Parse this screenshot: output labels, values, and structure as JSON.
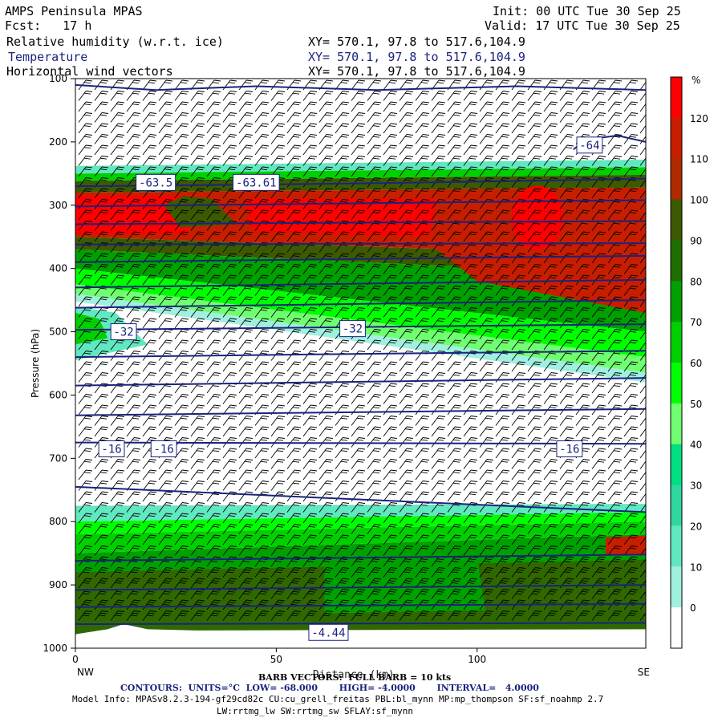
{
  "header": {
    "model": "AMPS Peninsula MPAS",
    "fcst": "Fcst:   17 h",
    "init": "Init: 00 UTC Tue 30 Sep 25",
    "valid": "Valid: 17 UTC Tue 30 Sep 25",
    "fields": [
      {
        "name": "Relative humidity (w.r.t. ice)",
        "xy": "XY= 570.1, 97.8 to 517.6,104.9"
      },
      {
        "name": "Temperature",
        "xy": "XY= 570.1, 97.8 to 517.6,104.9"
      },
      {
        "name": "Horizontal wind vectors",
        "xy": "XY= 570.1, 97.8 to 517.6,104.9"
      }
    ]
  },
  "footer": {
    "barb_line": "BARB VECTORS:  FULL BARB = 10 kts",
    "overlap_label": "Distance (km)",
    "contours_label": "CONTOURS:  UNITS=°C  LOW= -68.000       HIGH= -4.0000       INTERVAL=   4.0000",
    "model_info": "Model Info: MPASv8.2.3-194-gf29cd82c CU:cu_grell_freitas PBL:bl_mynn MP:mp_thompson SF:sf_noahmp 2.7",
    "model_info2": "LW:rrtmg_lw SW:rrtmg_sw SFLAY:sf_mynn"
  },
  "chart_data": {
    "type": "heatmap",
    "description_fields": [
      "Relative humidity (w.r.t. ice)",
      "Temperature",
      "Horizontal wind vectors"
    ],
    "ylabel": "Pressure (hPa)",
    "xlabel": "Distance (km)",
    "y_axis": {
      "range": [
        100,
        1000
      ],
      "ticks": [
        "100",
        "200",
        "300",
        "400",
        "500",
        "600",
        "700",
        "800",
        "900",
        "1000"
      ]
    },
    "x_axis": {
      "range": [
        0,
        142
      ],
      "ticks": [
        "0",
        "50",
        "100"
      ],
      "end_labels": [
        "NW",
        "SE"
      ]
    },
    "colorbar": {
      "unit": "%",
      "labels": [
        "120",
        "110",
        "100",
        "90",
        "80",
        "70",
        "60",
        "50",
        "40",
        "30",
        "20",
        "10",
        "0"
      ],
      "colors": [
        "#ff0000",
        "#c81e00",
        "#b02a00",
        "#3c5a00",
        "#1e6e00",
        "#00a000",
        "#00d000",
        "#00ff00",
        "#70ff70",
        "#00e080",
        "#30d8a0",
        "#60e8c0",
        "#a0f0e0",
        "#ffffff"
      ]
    },
    "temperature_labels": [
      {
        "text": "-63.5",
        "x": 20,
        "p": 264
      },
      {
        "text": "-63.61",
        "x": 45,
        "p": 264
      },
      {
        "text": "-64",
        "x": 128,
        "p": 205
      },
      {
        "text": "-32",
        "x": 12,
        "p": 500
      },
      {
        "text": "-32",
        "x": 69,
        "p": 495
      },
      {
        "text": "-16",
        "x": 9,
        "p": 685
      },
      {
        "text": "-16",
        "x": 22,
        "p": 685
      },
      {
        "text": "-16",
        "x": 123,
        "p": 685
      },
      {
        "text": "-4.44",
        "x": 63,
        "p": 975
      }
    ],
    "temperature_contours_p_at_x0_x142": [
      [
        270,
        258
      ],
      [
        302,
        292
      ],
      [
        330,
        325
      ],
      [
        362,
        360
      ],
      [
        390,
        380
      ],
      [
        430,
        418
      ],
      [
        462,
        450
      ],
      [
        497,
        488
      ],
      [
        540,
        530
      ],
      [
        585,
        573
      ],
      [
        632,
        622
      ],
      [
        675,
        677
      ],
      [
        745,
        785
      ],
      [
        862,
        852
      ],
      [
        908,
        900
      ],
      [
        935,
        930
      ],
      [
        962,
        960
      ]
    ],
    "wind_barbs": "westerly barbs throughout the cross-section; many full barbs near the surface layer"
  }
}
